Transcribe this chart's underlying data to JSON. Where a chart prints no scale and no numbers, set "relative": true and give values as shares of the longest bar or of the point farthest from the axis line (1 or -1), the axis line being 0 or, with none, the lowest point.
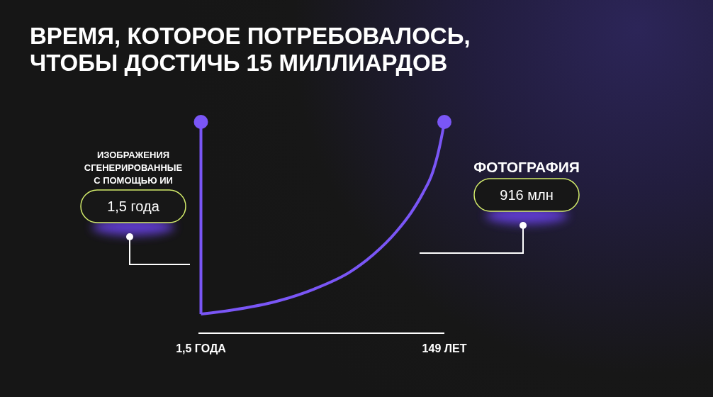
{
  "chart_data": {
    "type": "line",
    "title": "ВРЕМЯ, КОТОРОЕ ПОТРЕБОВАЛОСЬ, ЧТОБЫ ДОСТИЧЬ 15 МИЛЛИАРДОВ",
    "relative": true,
    "xlim": [
      0,
      149
    ],
    "xticks": [
      {
        "value": 1.5,
        "label": "1,5 ГОДА"
      },
      {
        "value": 149,
        "label": "149 ЛЕТ"
      }
    ],
    "series": [
      {
        "name": "ИЗОБРАЖЕНИЯ СГЕНЕРИРОВАННЫЕ С ПОМОЩЬЮ ИИ",
        "color": "#7a56f6",
        "x": [
          1.5,
          1.5
        ],
        "values": [
          0,
          1
        ]
      },
      {
        "name": "ФОТОГРАФИЯ",
        "color": "#7a56f6",
        "x": [
          1.5,
          20,
          49,
          70,
          92,
          106,
          120,
          129,
          136,
          142,
          145,
          147.5,
          149
        ],
        "values": [
          0,
          0.02,
          0.07,
          0.13,
          0.22,
          0.31,
          0.43,
          0.53,
          0.63,
          0.74,
          0.83,
          0.93,
          1
        ]
      },
      {
        "type": "scatter",
        "color": "#7a56f6",
        "x": [
          1.5,
          149
        ],
        "values": [
          1,
          1
        ]
      }
    ],
    "annotations": [
      "1,5 года",
      "916 млн"
    ]
  }
}
